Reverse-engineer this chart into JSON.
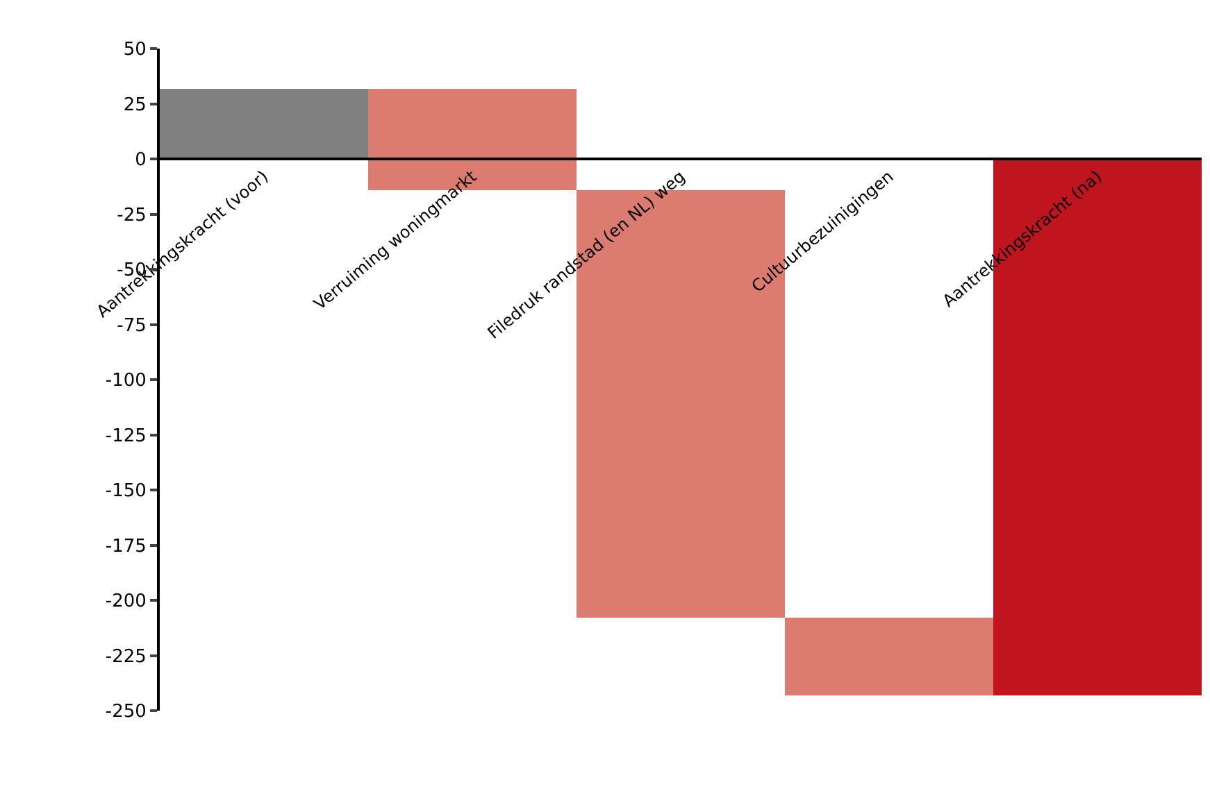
{
  "chart_data": {
    "type": "bar",
    "categories": [
      "Aantrekkingskracht (voor)",
      "Verruiming woningmarkt",
      "Filedruk randstad (en NL) weg",
      "Cultuurbezuinigingen",
      "Aantrekkingskracht (na)"
    ],
    "values": [
      32,
      -46,
      -194,
      -35,
      -243
    ],
    "base": [
      0,
      32,
      -14,
      -208,
      0
    ],
    "colors": [
      "#808080",
      "#dc7b6f",
      "#dc7b6f",
      "#dc7b6f",
      "#c0141e"
    ],
    "ylim": [
      -250,
      50
    ],
    "yticks": [
      -250,
      -225,
      -200,
      -175,
      -150,
      -125,
      -100,
      -75,
      -50,
      -25,
      0,
      25,
      50
    ],
    "legend": false
  }
}
